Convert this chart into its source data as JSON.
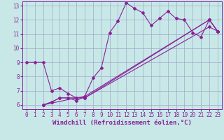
{
  "xlabel": "Windchill (Refroidissement éolien,°C)",
  "xlim": [
    -0.5,
    23.5
  ],
  "ylim": [
    5.7,
    13.3
  ],
  "xticks": [
    0,
    1,
    2,
    3,
    4,
    5,
    6,
    7,
    8,
    9,
    10,
    11,
    12,
    13,
    14,
    15,
    16,
    17,
    18,
    19,
    20,
    21,
    22,
    23
  ],
  "yticks": [
    6,
    7,
    8,
    9,
    10,
    11,
    12,
    13
  ],
  "bg_color": "#c8e8e8",
  "grid_color": "#a0a8c8",
  "line_color": "#882299",
  "line1_x": [
    2,
    3,
    4,
    5,
    6,
    7,
    8,
    9,
    10,
    11,
    12,
    13,
    14,
    15,
    16,
    17,
    18,
    19,
    20,
    21,
    22,
    23
  ],
  "line1_y": [
    6.0,
    6.2,
    6.5,
    6.5,
    6.3,
    6.6,
    7.9,
    8.6,
    11.1,
    11.9,
    13.2,
    12.8,
    12.5,
    11.6,
    12.1,
    12.6,
    12.1,
    12.0,
    11.1,
    10.8,
    12.0,
    11.2
  ],
  "line2_x": [
    0,
    1,
    2,
    3,
    4,
    5,
    6,
    7,
    22,
    23
  ],
  "line2_y": [
    9.0,
    9.0,
    9.0,
    7.0,
    7.2,
    6.8,
    6.5,
    6.5,
    12.0,
    11.2
  ],
  "line3_x": [
    2,
    3,
    4,
    5,
    6,
    7,
    22,
    23
  ],
  "line3_y": [
    6.0,
    6.2,
    6.5,
    6.5,
    6.5,
    6.6,
    12.0,
    11.2
  ],
  "line4_x": [
    2,
    6,
    7,
    22,
    23
  ],
  "line4_y": [
    6.0,
    6.5,
    6.5,
    11.5,
    11.2
  ],
  "tick_fontsize": 5.5,
  "label_fontsize": 6.5
}
